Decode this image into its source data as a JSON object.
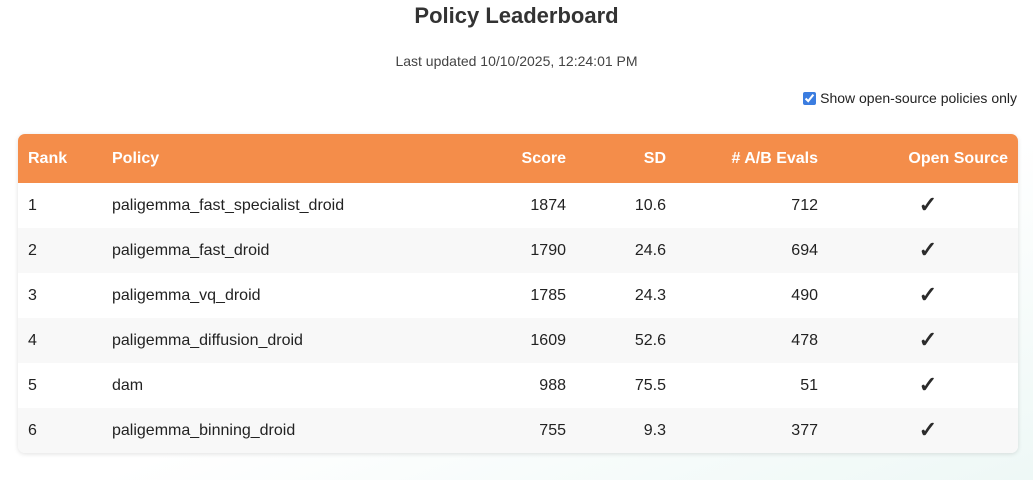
{
  "header": {
    "title": "Policy Leaderboard",
    "last_updated": "Last updated 10/10/2025, 12:24:01 PM"
  },
  "filter": {
    "label": "Show open-source policies only",
    "checked": true
  },
  "table": {
    "columns": {
      "rank": "Rank",
      "policy": "Policy",
      "score": "Score",
      "sd": "SD",
      "evals": "# A/B Evals",
      "open_source": "Open Source"
    },
    "rows": [
      {
        "rank": "1",
        "policy": "paligemma_fast_specialist_droid",
        "score": "1874",
        "sd": "10.6",
        "evals": "712",
        "open_source": "✓"
      },
      {
        "rank": "2",
        "policy": "paligemma_fast_droid",
        "score": "1790",
        "sd": "24.6",
        "evals": "694",
        "open_source": "✓"
      },
      {
        "rank": "3",
        "policy": "paligemma_vq_droid",
        "score": "1785",
        "sd": "24.3",
        "evals": "490",
        "open_source": "✓"
      },
      {
        "rank": "4",
        "policy": "paligemma_diffusion_droid",
        "score": "1609",
        "sd": "52.6",
        "evals": "478",
        "open_source": "✓"
      },
      {
        "rank": "5",
        "policy": "dam",
        "score": "988",
        "sd": "75.5",
        "evals": "51",
        "open_source": "✓"
      },
      {
        "rank": "6",
        "policy": "paligemma_binning_droid",
        "score": "755",
        "sd": "9.3",
        "evals": "377",
        "open_source": "✓"
      }
    ]
  },
  "colors": {
    "header_bg": "#f48d4a",
    "header_text": "#ffffff",
    "row_alt": "#f8f8f8",
    "checkbox_accent": "#3b7de0"
  },
  "icons": {
    "open_source_mark": "check-icon"
  }
}
